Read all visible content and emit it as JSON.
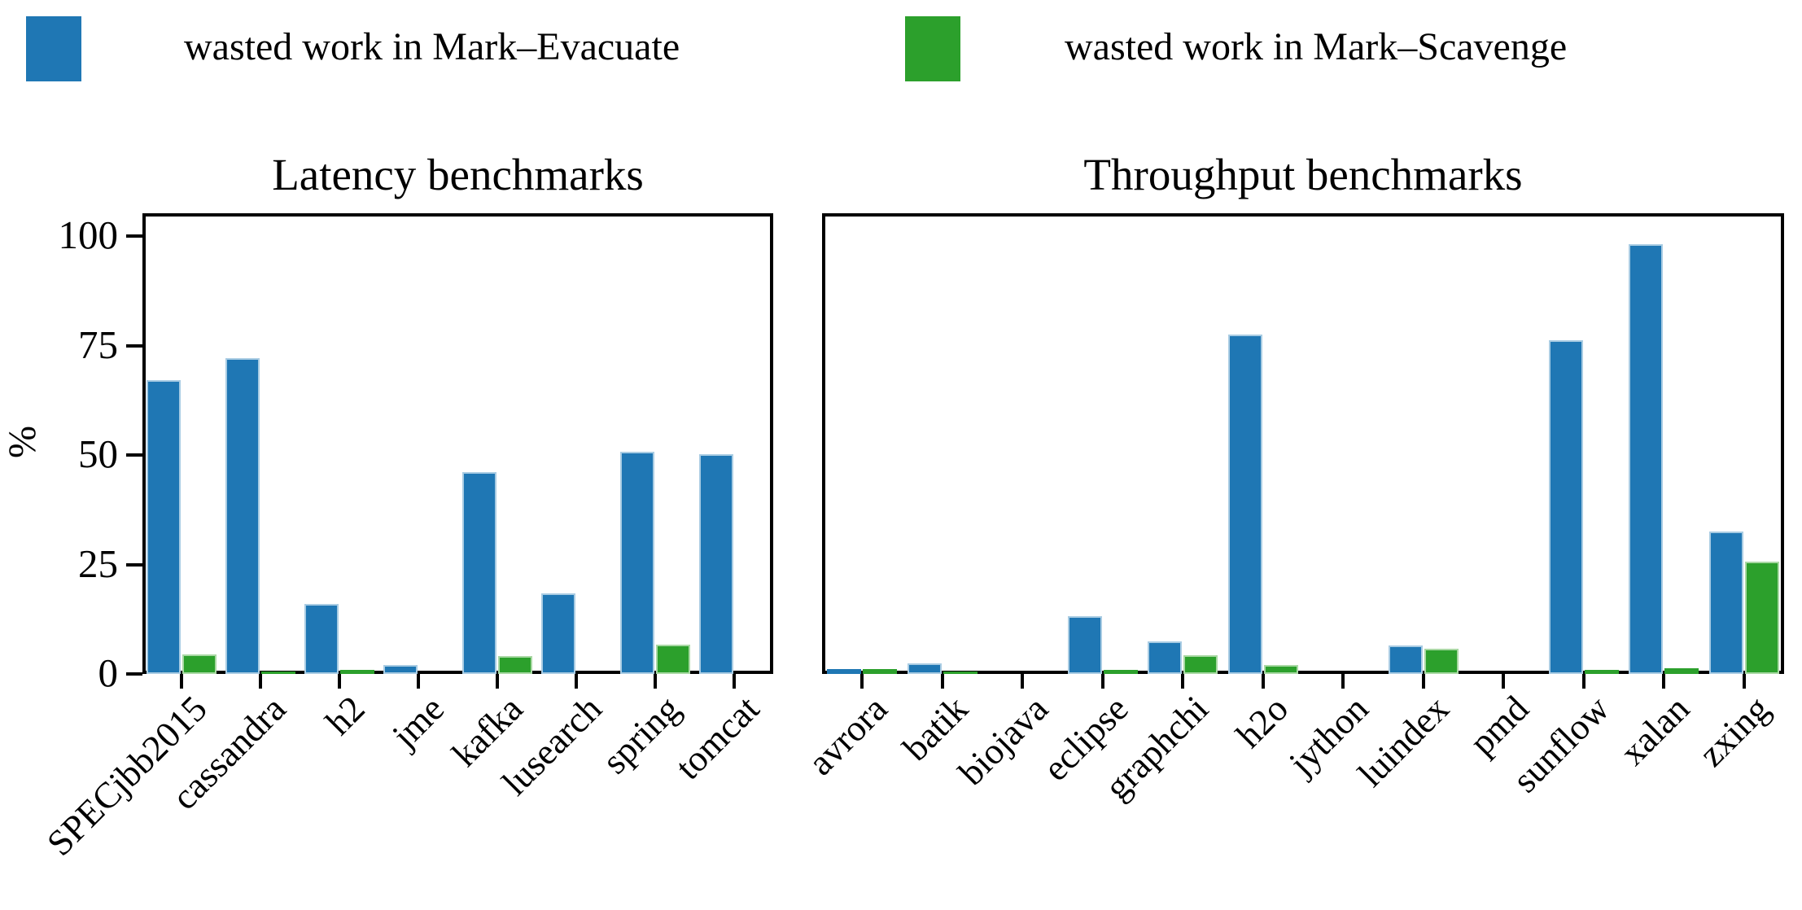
{
  "figure": {
    "ylabel": "%",
    "legend": {
      "items": [
        {
          "label": "wasted work in Mark–Evacuate",
          "color": "#1f77b4",
          "edge_color": "#a9cce3"
        },
        {
          "label": "wasted work in Mark–Scavenge",
          "color": "#2ca02c",
          "edge_color": "#a9d8a4"
        }
      ]
    }
  },
  "chart_data": [
    {
      "type": "bar",
      "title": "Latency benchmarks",
      "ylabel": "%",
      "ylim": [
        0,
        105
      ],
      "yticks": [
        0,
        25,
        50,
        75,
        100
      ],
      "grid": false,
      "categories": [
        "SPECjbb2015",
        "cassandra",
        "h2",
        "jme",
        "kafka",
        "lusearch",
        "spring",
        "tomcat"
      ],
      "series": [
        {
          "name": "wasted work in Mark–Evacuate",
          "color": "#1f77b4",
          "edge_color": "#a9cce3",
          "values": [
            67.2,
            72.2,
            16.0,
            2.1,
            46.2,
            18.5,
            50.8,
            50.3
          ]
        },
        {
          "name": "wasted work in Mark–Scavenge",
          "color": "#2ca02c",
          "edge_color": "#a9d8a4",
          "values": [
            4.5,
            0.6,
            0.9,
            0.0,
            4.1,
            0.0,
            6.7,
            0.0
          ]
        }
      ]
    },
    {
      "type": "bar",
      "title": "Throughput benchmarks",
      "ylabel": "%",
      "ylim": [
        0,
        105
      ],
      "yticks": [
        0,
        25,
        50,
        75,
        100
      ],
      "grid": false,
      "categories": [
        "avrora",
        "batik",
        "biojava",
        "eclipse",
        "graphchi",
        "h2o",
        "jython",
        "luindex",
        "pmd",
        "sunflow",
        "xalan",
        "zxing"
      ],
      "series": [
        {
          "name": "wasted work in Mark–Evacuate",
          "color": "#1f77b4",
          "edge_color": "#a9cce3",
          "values": [
            1.2,
            2.4,
            0.0,
            13.2,
            7.4,
            77.6,
            0.0,
            6.6,
            0.0,
            76.3,
            98.3,
            32.5
          ]
        },
        {
          "name": "wasted work in Mark–Scavenge",
          "color": "#2ca02c",
          "edge_color": "#a9d8a4",
          "values": [
            1.1,
            0.6,
            0.0,
            1.0,
            4.3,
            2.0,
            0.0,
            5.8,
            0.0,
            1.0,
            1.3,
            25.6
          ]
        }
      ]
    }
  ]
}
